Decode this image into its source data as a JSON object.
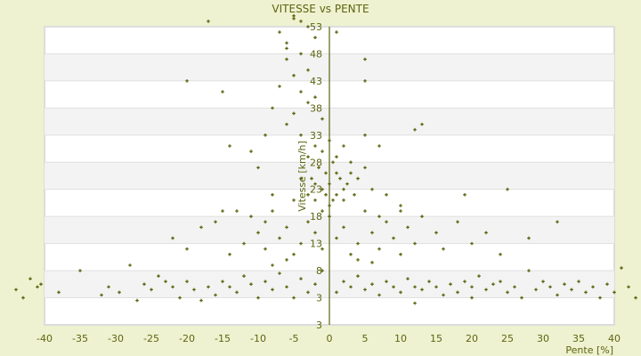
{
  "chart_data": {
    "type": "scatter",
    "title": "VITESSE vs PENTE",
    "xlabel": "Pente [%]",
    "ylabel": "Vitesse [km/h]",
    "xlim": [
      -40,
      40
    ],
    "ylim": [
      -2,
      53
    ],
    "xticks": [
      "-40",
      "-35",
      "-30",
      "-25",
      "-20",
      "-15",
      "-10",
      "-5",
      "0",
      "5",
      "10",
      "15",
      "20",
      "25",
      "30",
      "35",
      "40"
    ],
    "yticks": [
      "53",
      "48",
      "43",
      "38",
      "33",
      "28",
      "23",
      "18",
      "13",
      "8",
      "3",
      "3"
    ],
    "grid": true,
    "alternating_bands": true,
    "colors": {
      "marker": "#5c6410",
      "axis": "#5c6410",
      "band": "#f3f3f3",
      "background": "#eef2d0"
    },
    "points": [
      [
        -44,
        4.5
      ],
      [
        -43,
        3
      ],
      [
        -42,
        6.5
      ],
      [
        -41,
        5
      ],
      [
        -40.5,
        5.5
      ],
      [
        -38,
        4
      ],
      [
        -35,
        8
      ],
      [
        -32,
        3.5
      ],
      [
        -31,
        5
      ],
      [
        -29.5,
        4
      ],
      [
        -28,
        9
      ],
      [
        -27,
        2.5
      ],
      [
        -26,
        5.5
      ],
      [
        -25,
        4.5
      ],
      [
        -23,
        6
      ],
      [
        -22,
        5
      ],
      [
        -21,
        3
      ],
      [
        -20,
        6
      ],
      [
        -19,
        4.5
      ],
      [
        -17,
        5
      ],
      [
        -16,
        3.5
      ],
      [
        -15,
        6
      ],
      [
        -14,
        5
      ],
      [
        -13,
        4
      ],
      [
        -12,
        7
      ],
      [
        -11,
        5.5
      ],
      [
        -10,
        3
      ],
      [
        -9,
        6
      ],
      [
        -8,
        4.5
      ],
      [
        -7,
        7.5
      ],
      [
        -6,
        5
      ],
      [
        -5,
        3
      ],
      [
        -4,
        6.5
      ],
      [
        -3,
        4
      ],
      [
        -2,
        5.5
      ],
      [
        -1,
        8
      ],
      [
        1,
        4
      ],
      [
        2,
        6
      ],
      [
        3,
        5
      ],
      [
        4,
        7
      ],
      [
        5,
        4.5
      ],
      [
        6,
        5.5
      ],
      [
        7,
        3.5
      ],
      [
        8,
        6
      ],
      [
        9,
        5
      ],
      [
        10,
        4
      ],
      [
        11,
        6.5
      ],
      [
        12,
        5
      ],
      [
        13,
        4.5
      ],
      [
        14,
        6
      ],
      [
        15,
        5
      ],
      [
        16,
        3.5
      ],
      [
        17,
        5.5
      ],
      [
        18,
        4
      ],
      [
        19,
        6
      ],
      [
        20,
        5
      ],
      [
        21,
        7
      ],
      [
        22,
        4.5
      ],
      [
        23,
        5.5
      ],
      [
        24,
        6
      ],
      [
        25,
        4
      ],
      [
        26,
        5
      ],
      [
        27,
        3
      ],
      [
        28,
        8
      ],
      [
        29,
        4.5
      ],
      [
        30,
        6
      ],
      [
        31,
        5
      ],
      [
        32,
        3.5
      ],
      [
        33,
        5.5
      ],
      [
        34,
        4.5
      ],
      [
        35,
        6
      ],
      [
        36,
        4
      ],
      [
        37,
        5
      ],
      [
        38,
        3
      ],
      [
        39,
        5.5
      ],
      [
        40,
        4
      ],
      [
        41,
        8.5
      ],
      [
        42,
        5
      ],
      [
        43,
        3
      ],
      [
        -18,
        2.5
      ],
      [
        -24,
        7
      ],
      [
        12,
        2
      ],
      [
        20,
        3
      ],
      [
        -8,
        9
      ],
      [
        6,
        9.5
      ],
      [
        -22,
        14
      ],
      [
        -20,
        12
      ],
      [
        -18,
        16
      ],
      [
        -16,
        17
      ],
      [
        -14,
        11
      ],
      [
        -12,
        13
      ],
      [
        -11,
        18
      ],
      [
        -10,
        15
      ],
      [
        -9,
        12
      ],
      [
        -8,
        19
      ],
      [
        -7,
        14
      ],
      [
        -6,
        16
      ],
      [
        -5,
        11
      ],
      [
        -4,
        13
      ],
      [
        -3,
        17
      ],
      [
        -2,
        15
      ],
      [
        -1,
        12
      ],
      [
        0,
        18
      ],
      [
        1,
        14
      ],
      [
        2,
        16
      ],
      [
        3,
        11
      ],
      [
        4,
        13
      ],
      [
        5,
        19
      ],
      [
        6,
        15
      ],
      [
        7,
        12
      ],
      [
        8,
        17
      ],
      [
        9,
        14
      ],
      [
        10,
        11
      ],
      [
        11,
        16
      ],
      [
        12,
        13
      ],
      [
        13,
        18
      ],
      [
        15,
        15
      ],
      [
        16,
        12
      ],
      [
        18,
        17
      ],
      [
        20,
        13
      ],
      [
        22,
        15
      ],
      [
        24,
        11
      ],
      [
        28,
        14
      ],
      [
        32,
        17
      ],
      [
        -6,
        10
      ],
      [
        4,
        10
      ],
      [
        -9,
        17
      ],
      [
        7,
        18
      ],
      [
        -13,
        19
      ],
      [
        10,
        19
      ],
      [
        -3,
        22
      ],
      [
        -2.5,
        25
      ],
      [
        -2,
        21
      ],
      [
        -1.5,
        27
      ],
      [
        -1,
        23
      ],
      [
        -0.5,
        26
      ],
      [
        0,
        20
      ],
      [
        0,
        24
      ],
      [
        0.5,
        28
      ],
      [
        1,
        22
      ],
      [
        1.5,
        25
      ],
      [
        2,
        21
      ],
      [
        2.5,
        24
      ],
      [
        3,
        26
      ],
      [
        -1,
        19
      ],
      [
        0.5,
        21
      ],
      [
        1,
        26
      ],
      [
        -0.5,
        22
      ],
      [
        -2,
        24
      ],
      [
        2,
        23
      ],
      [
        3.5,
        22
      ],
      [
        4,
        25
      ],
      [
        5,
        27
      ],
      [
        -4,
        25
      ],
      [
        -5,
        21
      ],
      [
        6,
        23
      ],
      [
        8,
        22
      ],
      [
        10,
        20
      ],
      [
        -8,
        22
      ],
      [
        -10,
        27
      ],
      [
        -15,
        19
      ],
      [
        25,
        23
      ],
      [
        19,
        22
      ],
      [
        -7,
        52
      ],
      [
        -6,
        50
      ],
      [
        -5,
        55
      ],
      [
        -4,
        48
      ],
      [
        -3,
        45
      ],
      [
        -6,
        47
      ],
      [
        -5,
        44
      ],
      [
        -4,
        41
      ],
      [
        -3,
        39
      ],
      [
        -5,
        37
      ],
      [
        -6,
        35
      ],
      [
        -4,
        33
      ],
      [
        -2,
        31
      ],
      [
        -3,
        29
      ],
      [
        -7,
        42
      ],
      [
        -2,
        51
      ],
      [
        -1,
        36
      ],
      [
        -2,
        40
      ],
      [
        -8,
        38
      ],
      [
        -9,
        33
      ],
      [
        -1,
        30
      ],
      [
        0,
        32
      ],
      [
        1,
        29
      ],
      [
        2,
        31
      ],
      [
        3,
        28
      ],
      [
        5,
        33
      ],
      [
        7,
        31
      ],
      [
        12,
        34
      ],
      [
        13,
        35
      ],
      [
        -14,
        31
      ],
      [
        -17,
        54
      ],
      [
        -15,
        41
      ],
      [
        -20,
        43
      ],
      [
        -11,
        30
      ],
      [
        -5,
        54.5
      ],
      [
        -3,
        53
      ],
      [
        1,
        52
      ],
      [
        5,
        47
      ],
      [
        5,
        43
      ],
      [
        -4,
        54
      ],
      [
        -6,
        49
      ]
    ]
  }
}
